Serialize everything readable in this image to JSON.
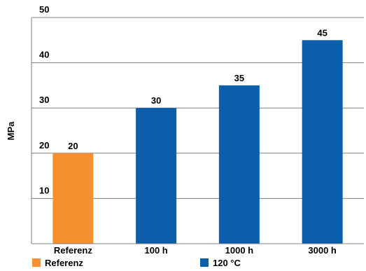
{
  "chart_data": {
    "type": "bar",
    "title": "",
    "xlabel": "",
    "ylabel": "MPa",
    "ylim": [
      0,
      50
    ],
    "yticks": [
      10,
      20,
      30,
      40,
      50
    ],
    "grid": true,
    "legend_position": "bottom",
    "categories": [
      "Referenz",
      "100 h",
      "1000 h",
      "3000 h"
    ],
    "series": [
      {
        "name": "Referenz",
        "color": "#f7902f",
        "values": [
          20,
          null,
          null,
          null
        ]
      },
      {
        "name": "120 °C",
        "color": "#0b5eab",
        "values": [
          null,
          30,
          35,
          45
        ]
      }
    ]
  }
}
